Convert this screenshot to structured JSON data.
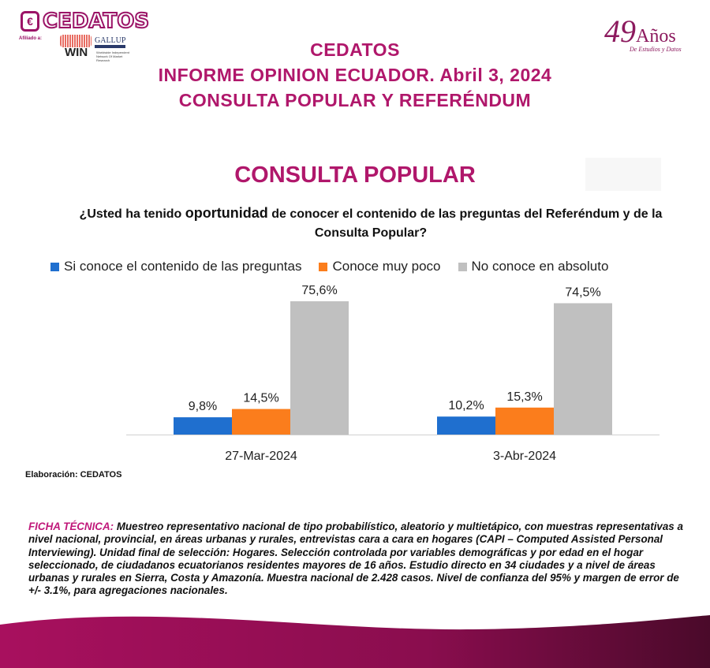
{
  "logo": {
    "brand": "CEDATOS",
    "affiliated": "Afiliado a:",
    "win": "WIN",
    "gallup": "GALLUP",
    "win_sub": "Worldwide Independent Network Of Market Research"
  },
  "anniversary": {
    "number": "49",
    "word": "Años",
    "subtitle": "De Estudios y Datos"
  },
  "header": {
    "line1": "CEDATOS",
    "line2": "INFORME OPINION ECUADOR. Abril 3, 2024",
    "line3": "CONSULTA POPULAR Y REFERÉNDUM"
  },
  "chart_title": "CONSULTA POPULAR",
  "question": {
    "pre": "¿Usted ha tenido ",
    "bold": "oportunidad",
    "post": " de conocer el contenido de las preguntas del Referéndum y de la Consulta Popular?"
  },
  "chart_data": {
    "type": "bar",
    "categories": [
      "27-Mar-2024",
      "3-Abr-2024"
    ],
    "series": [
      {
        "name": "Si conoce el contenido de las preguntas",
        "color": "#1f6fcf",
        "values": [
          9.8,
          10.2
        ],
        "labels": [
          "9,8%",
          "10,2%"
        ]
      },
      {
        "name": "Conoce muy poco",
        "color": "#fb7d1c",
        "values": [
          14.5,
          15.3
        ],
        "labels": [
          "14,5%",
          "15,3%"
        ]
      },
      {
        "name": "No conoce en absoluto",
        "color": "#c0c0c0",
        "values": [
          75.6,
          74.5
        ],
        "labels": [
          "75,6%",
          "74,5%"
        ]
      }
    ],
    "ylim": [
      0,
      80
    ],
    "legend": "top",
    "grid": false
  },
  "source": "Elaboración: CEDATOS",
  "ficha": {
    "label": "FICHA TÉCNICA:",
    "text": " Muestreo representativo nacional de tipo probabilístico, aleatorio y multietápico, con muestras representativas a nivel nacional, provincial, en áreas urbanas y rurales, entrevistas cara a cara en hogares (CAPI – Computed Assisted Personal Interviewing). Unidad final de selección: Hogares. Selección controlada por variables demográficas y por edad en el hogar seleccionado, de ciudadanos ecuatorianos residentes mayores de 16 años. Estudio directo en 34 ciudades y a nivel de áreas urbanas y rurales en Sierra, Costa y Amazonía. Muestra nacional de 2.428 casos. Nivel de confianza del 95% y margen de error de +/- 3.1%, para agregaciones nacionales."
  }
}
